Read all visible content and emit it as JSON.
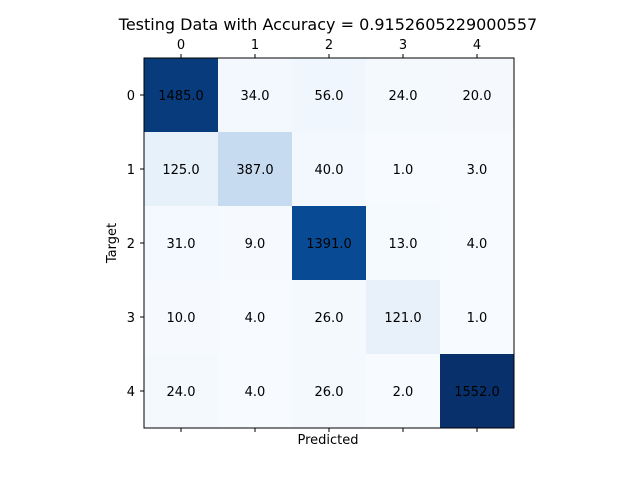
{
  "chart_data": {
    "type": "heatmap",
    "title": "Testing Data with Accuracy  = 0.9152605229000557",
    "xlabel": "Predicted",
    "ylabel": "Target",
    "x_ticks": [
      "0",
      "1",
      "2",
      "3",
      "4"
    ],
    "y_ticks": [
      "0",
      "1",
      "2",
      "3",
      "4"
    ],
    "x_tick_position": "top",
    "colormap": "Blues",
    "colorbar": false,
    "grid": false,
    "values": [
      [
        1485.0,
        34.0,
        56.0,
        24.0,
        20.0
      ],
      [
        125.0,
        387.0,
        40.0,
        1.0,
        3.0
      ],
      [
        31.0,
        9.0,
        1391.0,
        13.0,
        4.0
      ],
      [
        10.0,
        4.0,
        26.0,
        121.0,
        1.0
      ],
      [
        24.0,
        4.0,
        26.0,
        2.0,
        1552.0
      ]
    ],
    "cell_labels": [
      [
        "1485.0",
        "34.0",
        "56.0",
        "24.0",
        "20.0"
      ],
      [
        "125.0",
        "387.0",
        "40.0",
        "1.0",
        "3.0"
      ],
      [
        "31.0",
        "9.0",
        "1391.0",
        "13.0",
        "4.0"
      ],
      [
        "10.0",
        "4.0",
        "26.0",
        "121.0",
        "1.0"
      ],
      [
        "24.0",
        "4.0",
        "26.0",
        "2.0",
        "1552.0"
      ]
    ]
  }
}
